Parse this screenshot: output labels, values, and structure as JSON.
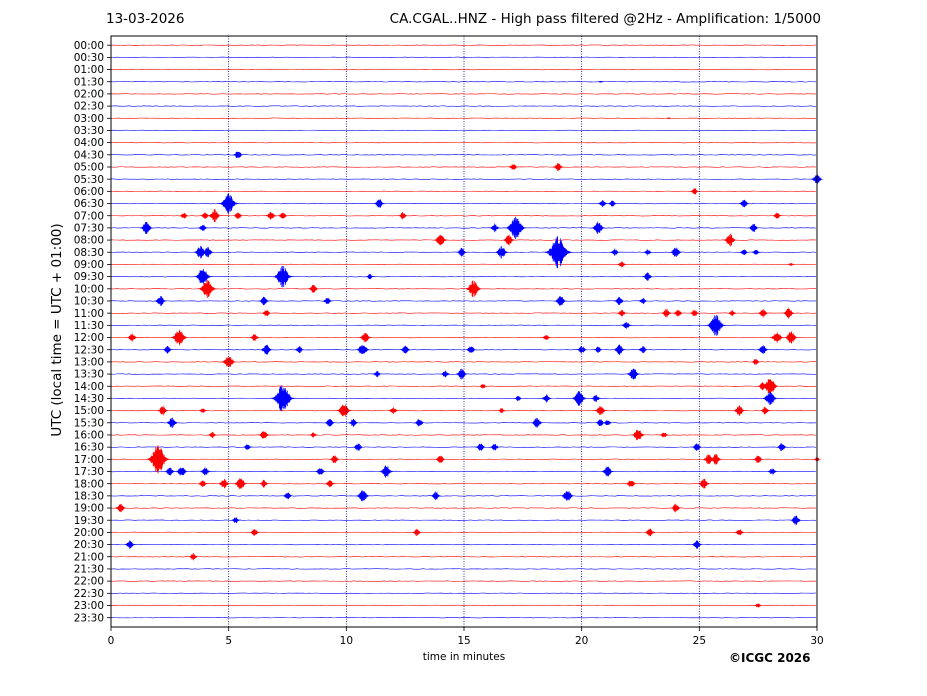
{
  "header": {
    "date": "13-03-2026",
    "title": "CA.CGAL..HNZ - High pass filtered @2Hz - Amplification: 1/5000"
  },
  "credit": "©ICGC 2026",
  "colors": {
    "trace_a": "#ff0000",
    "trace_b": "#0000ff",
    "grid": "#00008b"
  },
  "chart_data": {
    "type": "line",
    "title": "CA.CGAL..HNZ - High pass filtered @2Hz - Amplification: 1/5000",
    "xlabel": "time in minutes",
    "ylabel": "UTC (local time = UTC + 01:00)",
    "xlim": [
      0,
      30
    ],
    "x_ticks": [
      0,
      5,
      10,
      15,
      20,
      25,
      30
    ],
    "grid": "vertical dotted lines at 5, 10, 15, 20, 25",
    "rows": [
      "00:00",
      "00:30",
      "01:00",
      "01:30",
      "02:00",
      "02:30",
      "03:00",
      "03:30",
      "04:00",
      "04:30",
      "05:00",
      "05:30",
      "06:00",
      "06:30",
      "07:00",
      "07:30",
      "08:00",
      "08:30",
      "09:00",
      "09:30",
      "10:00",
      "10:30",
      "11:00",
      "11:30",
      "12:00",
      "12:30",
      "13:00",
      "13:30",
      "14:00",
      "14:30",
      "15:00",
      "15:30",
      "16:00",
      "16:30",
      "17:00",
      "17:30",
      "18:00",
      "18:30",
      "19:00",
      "19:30",
      "20:00",
      "20:30",
      "21:00",
      "21:30",
      "22:00",
      "22:30",
      "23:00",
      "23:30"
    ],
    "row_colors": "alternating red / blue starting with red at 00:00",
    "events": [
      {
        "row": "01:30",
        "t": 20.8,
        "a": 0.2
      },
      {
        "row": "03:00",
        "t": 23.7,
        "a": 0.2
      },
      {
        "row": "04:30",
        "t": 5.4,
        "a": 0.8
      },
      {
        "row": "05:00",
        "t": 17.1,
        "a": 0.7
      },
      {
        "row": "05:00",
        "t": 19.0,
        "a": 0.8
      },
      {
        "row": "05:30",
        "t": 30.0,
        "a": 1.0
      },
      {
        "row": "06:00",
        "t": 24.8,
        "a": 0.6
      },
      {
        "row": "06:30",
        "t": 5.0,
        "a": 2.0
      },
      {
        "row": "06:30",
        "t": 11.4,
        "a": 0.9
      },
      {
        "row": "06:30",
        "t": 20.9,
        "a": 0.7
      },
      {
        "row": "06:30",
        "t": 21.3,
        "a": 0.6
      },
      {
        "row": "06:30",
        "t": 26.9,
        "a": 0.8
      },
      {
        "row": "07:00",
        "t": 3.1,
        "a": 0.6
      },
      {
        "row": "07:00",
        "t": 4.0,
        "a": 0.7
      },
      {
        "row": "07:00",
        "t": 4.4,
        "a": 1.2
      },
      {
        "row": "07:00",
        "t": 5.4,
        "a": 0.7
      },
      {
        "row": "07:00",
        "t": 6.8,
        "a": 0.8
      },
      {
        "row": "07:00",
        "t": 7.3,
        "a": 0.7
      },
      {
        "row": "07:00",
        "t": 12.4,
        "a": 0.7
      },
      {
        "row": "07:00",
        "t": 28.3,
        "a": 0.6
      },
      {
        "row": "07:30",
        "t": 1.5,
        "a": 1.2
      },
      {
        "row": "07:30",
        "t": 3.9,
        "a": 0.7
      },
      {
        "row": "07:30",
        "t": 16.3,
        "a": 0.8
      },
      {
        "row": "07:30",
        "t": 17.2,
        "a": 2.2
      },
      {
        "row": "07:30",
        "t": 20.7,
        "a": 1.2
      },
      {
        "row": "07:30",
        "t": 27.3,
        "a": 0.8
      },
      {
        "row": "08:00",
        "t": 14.0,
        "a": 1.2
      },
      {
        "row": "08:00",
        "t": 16.9,
        "a": 1.0
      },
      {
        "row": "08:00",
        "t": 26.3,
        "a": 1.2
      },
      {
        "row": "08:30",
        "t": 3.8,
        "a": 1.2
      },
      {
        "row": "08:30",
        "t": 4.1,
        "a": 1.0
      },
      {
        "row": "08:30",
        "t": 14.9,
        "a": 0.8
      },
      {
        "row": "08:30",
        "t": 16.6,
        "a": 1.2
      },
      {
        "row": "08:30",
        "t": 19.0,
        "a": 3.0
      },
      {
        "row": "08:30",
        "t": 21.4,
        "a": 0.7
      },
      {
        "row": "08:30",
        "t": 22.8,
        "a": 0.6
      },
      {
        "row": "08:30",
        "t": 24.0,
        "a": 1.0
      },
      {
        "row": "08:30",
        "t": 26.9,
        "a": 0.6
      },
      {
        "row": "08:30",
        "t": 27.4,
        "a": 0.6
      },
      {
        "row": "09:00",
        "t": 21.7,
        "a": 0.6
      },
      {
        "row": "09:00",
        "t": 28.9,
        "a": 0.3
      },
      {
        "row": "09:30",
        "t": 3.9,
        "a": 1.7
      },
      {
        "row": "09:30",
        "t": 7.3,
        "a": 2.0
      },
      {
        "row": "09:30",
        "t": 11.0,
        "a": 0.5
      },
      {
        "row": "09:30",
        "t": 22.8,
        "a": 0.8
      },
      {
        "row": "10:00",
        "t": 4.1,
        "a": 1.8
      },
      {
        "row": "10:00",
        "t": 8.6,
        "a": 0.8
      },
      {
        "row": "10:00",
        "t": 15.4,
        "a": 1.6
      },
      {
        "row": "10:30",
        "t": 2.1,
        "a": 1.0
      },
      {
        "row": "10:30",
        "t": 6.5,
        "a": 0.8
      },
      {
        "row": "10:30",
        "t": 9.2,
        "a": 0.7
      },
      {
        "row": "10:30",
        "t": 19.1,
        "a": 1.0
      },
      {
        "row": "10:30",
        "t": 21.6,
        "a": 0.8
      },
      {
        "row": "10:30",
        "t": 22.6,
        "a": 0.6
      },
      {
        "row": "11:00",
        "t": 6.6,
        "a": 0.7
      },
      {
        "row": "11:00",
        "t": 21.7,
        "a": 0.7
      },
      {
        "row": "11:00",
        "t": 23.6,
        "a": 0.8
      },
      {
        "row": "11:00",
        "t": 24.1,
        "a": 0.7
      },
      {
        "row": "11:00",
        "t": 24.8,
        "a": 0.7
      },
      {
        "row": "11:00",
        "t": 26.4,
        "a": 0.6
      },
      {
        "row": "11:00",
        "t": 27.7,
        "a": 0.8
      },
      {
        "row": "11:00",
        "t": 28.8,
        "a": 1.0
      },
      {
        "row": "11:30",
        "t": 21.9,
        "a": 0.8
      },
      {
        "row": "11:30",
        "t": 25.7,
        "a": 2.0
      },
      {
        "row": "12:00",
        "t": 0.9,
        "a": 0.8
      },
      {
        "row": "12:00",
        "t": 2.9,
        "a": 1.6
      },
      {
        "row": "12:00",
        "t": 6.1,
        "a": 0.7
      },
      {
        "row": "12:00",
        "t": 10.8,
        "a": 1.0
      },
      {
        "row": "12:00",
        "t": 18.5,
        "a": 0.6
      },
      {
        "row": "12:00",
        "t": 28.3,
        "a": 1.2
      },
      {
        "row": "12:00",
        "t": 28.9,
        "a": 1.2
      },
      {
        "row": "12:30",
        "t": 2.4,
        "a": 0.7
      },
      {
        "row": "12:30",
        "t": 6.6,
        "a": 1.0
      },
      {
        "row": "12:30",
        "t": 8.0,
        "a": 0.7
      },
      {
        "row": "12:30",
        "t": 10.7,
        "a": 1.2
      },
      {
        "row": "12:30",
        "t": 12.5,
        "a": 0.8
      },
      {
        "row": "12:30",
        "t": 15.3,
        "a": 0.8
      },
      {
        "row": "12:30",
        "t": 20.0,
        "a": 0.8
      },
      {
        "row": "12:30",
        "t": 20.7,
        "a": 0.6
      },
      {
        "row": "12:30",
        "t": 21.6,
        "a": 1.0
      },
      {
        "row": "12:30",
        "t": 22.6,
        "a": 0.7
      },
      {
        "row": "12:30",
        "t": 27.7,
        "a": 0.9
      },
      {
        "row": "13:00",
        "t": 5.0,
        "a": 1.3
      },
      {
        "row": "13:00",
        "t": 27.4,
        "a": 0.6
      },
      {
        "row": "13:30",
        "t": 11.3,
        "a": 0.6
      },
      {
        "row": "13:30",
        "t": 14.2,
        "a": 0.7
      },
      {
        "row": "13:30",
        "t": 14.9,
        "a": 1.0
      },
      {
        "row": "13:30",
        "t": 22.2,
        "a": 1.2
      },
      {
        "row": "14:00",
        "t": 15.8,
        "a": 0.5
      },
      {
        "row": "14:00",
        "t": 27.7,
        "a": 0.8
      },
      {
        "row": "14:00",
        "t": 28.0,
        "a": 1.7
      },
      {
        "row": "14:30",
        "t": 7.3,
        "a": 2.6
      },
      {
        "row": "14:30",
        "t": 17.3,
        "a": 0.5
      },
      {
        "row": "14:30",
        "t": 18.5,
        "a": 0.8
      },
      {
        "row": "14:30",
        "t": 19.9,
        "a": 1.4
      },
      {
        "row": "14:30",
        "t": 20.6,
        "a": 0.7
      },
      {
        "row": "14:30",
        "t": 28.0,
        "a": 1.4
      },
      {
        "row": "15:00",
        "t": 2.2,
        "a": 0.9
      },
      {
        "row": "15:00",
        "t": 3.9,
        "a": 0.5
      },
      {
        "row": "15:00",
        "t": 9.9,
        "a": 1.4
      },
      {
        "row": "15:00",
        "t": 12.0,
        "a": 0.7
      },
      {
        "row": "15:00",
        "t": 16.6,
        "a": 0.5
      },
      {
        "row": "15:00",
        "t": 20.8,
        "a": 1.0
      },
      {
        "row": "15:00",
        "t": 26.7,
        "a": 1.0
      },
      {
        "row": "15:00",
        "t": 27.8,
        "a": 0.8
      },
      {
        "row": "15:30",
        "t": 2.6,
        "a": 1.0
      },
      {
        "row": "15:30",
        "t": 9.3,
        "a": 0.8
      },
      {
        "row": "15:30",
        "t": 10.3,
        "a": 0.8
      },
      {
        "row": "15:30",
        "t": 13.1,
        "a": 0.8
      },
      {
        "row": "15:30",
        "t": 18.1,
        "a": 1.0
      },
      {
        "row": "15:30",
        "t": 20.8,
        "a": 0.7
      },
      {
        "row": "15:30",
        "t": 21.1,
        "a": 0.6
      },
      {
        "row": "16:00",
        "t": 4.3,
        "a": 0.6
      },
      {
        "row": "16:00",
        "t": 6.5,
        "a": 0.9
      },
      {
        "row": "16:00",
        "t": 8.6,
        "a": 0.5
      },
      {
        "row": "16:00",
        "t": 22.4,
        "a": 1.2
      },
      {
        "row": "16:00",
        "t": 23.5,
        "a": 0.6
      },
      {
        "row": "16:30",
        "t": 5.8,
        "a": 0.6
      },
      {
        "row": "16:30",
        "t": 10.5,
        "a": 0.8
      },
      {
        "row": "16:30",
        "t": 15.7,
        "a": 0.8
      },
      {
        "row": "16:30",
        "t": 16.3,
        "a": 0.7
      },
      {
        "row": "16:30",
        "t": 24.9,
        "a": 0.8
      },
      {
        "row": "16:30",
        "t": 28.5,
        "a": 0.8
      },
      {
        "row": "17:00",
        "t": 2.0,
        "a": 2.6
      },
      {
        "row": "17:00",
        "t": 9.5,
        "a": 0.8
      },
      {
        "row": "17:00",
        "t": 14.0,
        "a": 0.8
      },
      {
        "row": "17:00",
        "t": 25.4,
        "a": 1.0
      },
      {
        "row": "17:00",
        "t": 25.7,
        "a": 1.0
      },
      {
        "row": "17:00",
        "t": 27.5,
        "a": 0.8
      },
      {
        "row": "17:00",
        "t": 30.0,
        "a": 0.4
      },
      {
        "row": "17:30",
        "t": 2.5,
        "a": 0.8
      },
      {
        "row": "17:30",
        "t": 3.0,
        "a": 1.0
      },
      {
        "row": "17:30",
        "t": 4.0,
        "a": 0.8
      },
      {
        "row": "17:30",
        "t": 8.9,
        "a": 0.8
      },
      {
        "row": "17:30",
        "t": 11.7,
        "a": 1.2
      },
      {
        "row": "17:30",
        "t": 21.1,
        "a": 1.0
      },
      {
        "row": "17:30",
        "t": 28.1,
        "a": 0.7
      },
      {
        "row": "18:00",
        "t": 3.9,
        "a": 0.7
      },
      {
        "row": "18:00",
        "t": 4.8,
        "a": 1.0
      },
      {
        "row": "18:00",
        "t": 5.5,
        "a": 1.2
      },
      {
        "row": "18:00",
        "t": 6.5,
        "a": 0.7
      },
      {
        "row": "18:00",
        "t": 9.3,
        "a": 0.7
      },
      {
        "row": "18:00",
        "t": 22.1,
        "a": 0.8
      },
      {
        "row": "18:00",
        "t": 25.2,
        "a": 1.0
      },
      {
        "row": "18:30",
        "t": 7.5,
        "a": 0.7
      },
      {
        "row": "18:30",
        "t": 10.7,
        "a": 1.2
      },
      {
        "row": "18:30",
        "t": 13.8,
        "a": 0.8
      },
      {
        "row": "18:30",
        "t": 19.4,
        "a": 1.2
      },
      {
        "row": "19:00",
        "t": 0.4,
        "a": 0.9
      },
      {
        "row": "19:00",
        "t": 24.0,
        "a": 0.8
      },
      {
        "row": "19:30",
        "t": 5.3,
        "a": 0.6
      },
      {
        "row": "19:30",
        "t": 29.1,
        "a": 0.9
      },
      {
        "row": "20:00",
        "t": 6.1,
        "a": 0.7
      },
      {
        "row": "20:00",
        "t": 13.0,
        "a": 0.7
      },
      {
        "row": "20:00",
        "t": 22.9,
        "a": 0.8
      },
      {
        "row": "20:00",
        "t": 26.7,
        "a": 0.7
      },
      {
        "row": "20:30",
        "t": 0.8,
        "a": 0.8
      },
      {
        "row": "20:30",
        "t": 24.9,
        "a": 0.8
      },
      {
        "row": "21:00",
        "t": 3.5,
        "a": 0.7
      },
      {
        "row": "23:00",
        "t": 27.5,
        "a": 0.5
      }
    ]
  }
}
